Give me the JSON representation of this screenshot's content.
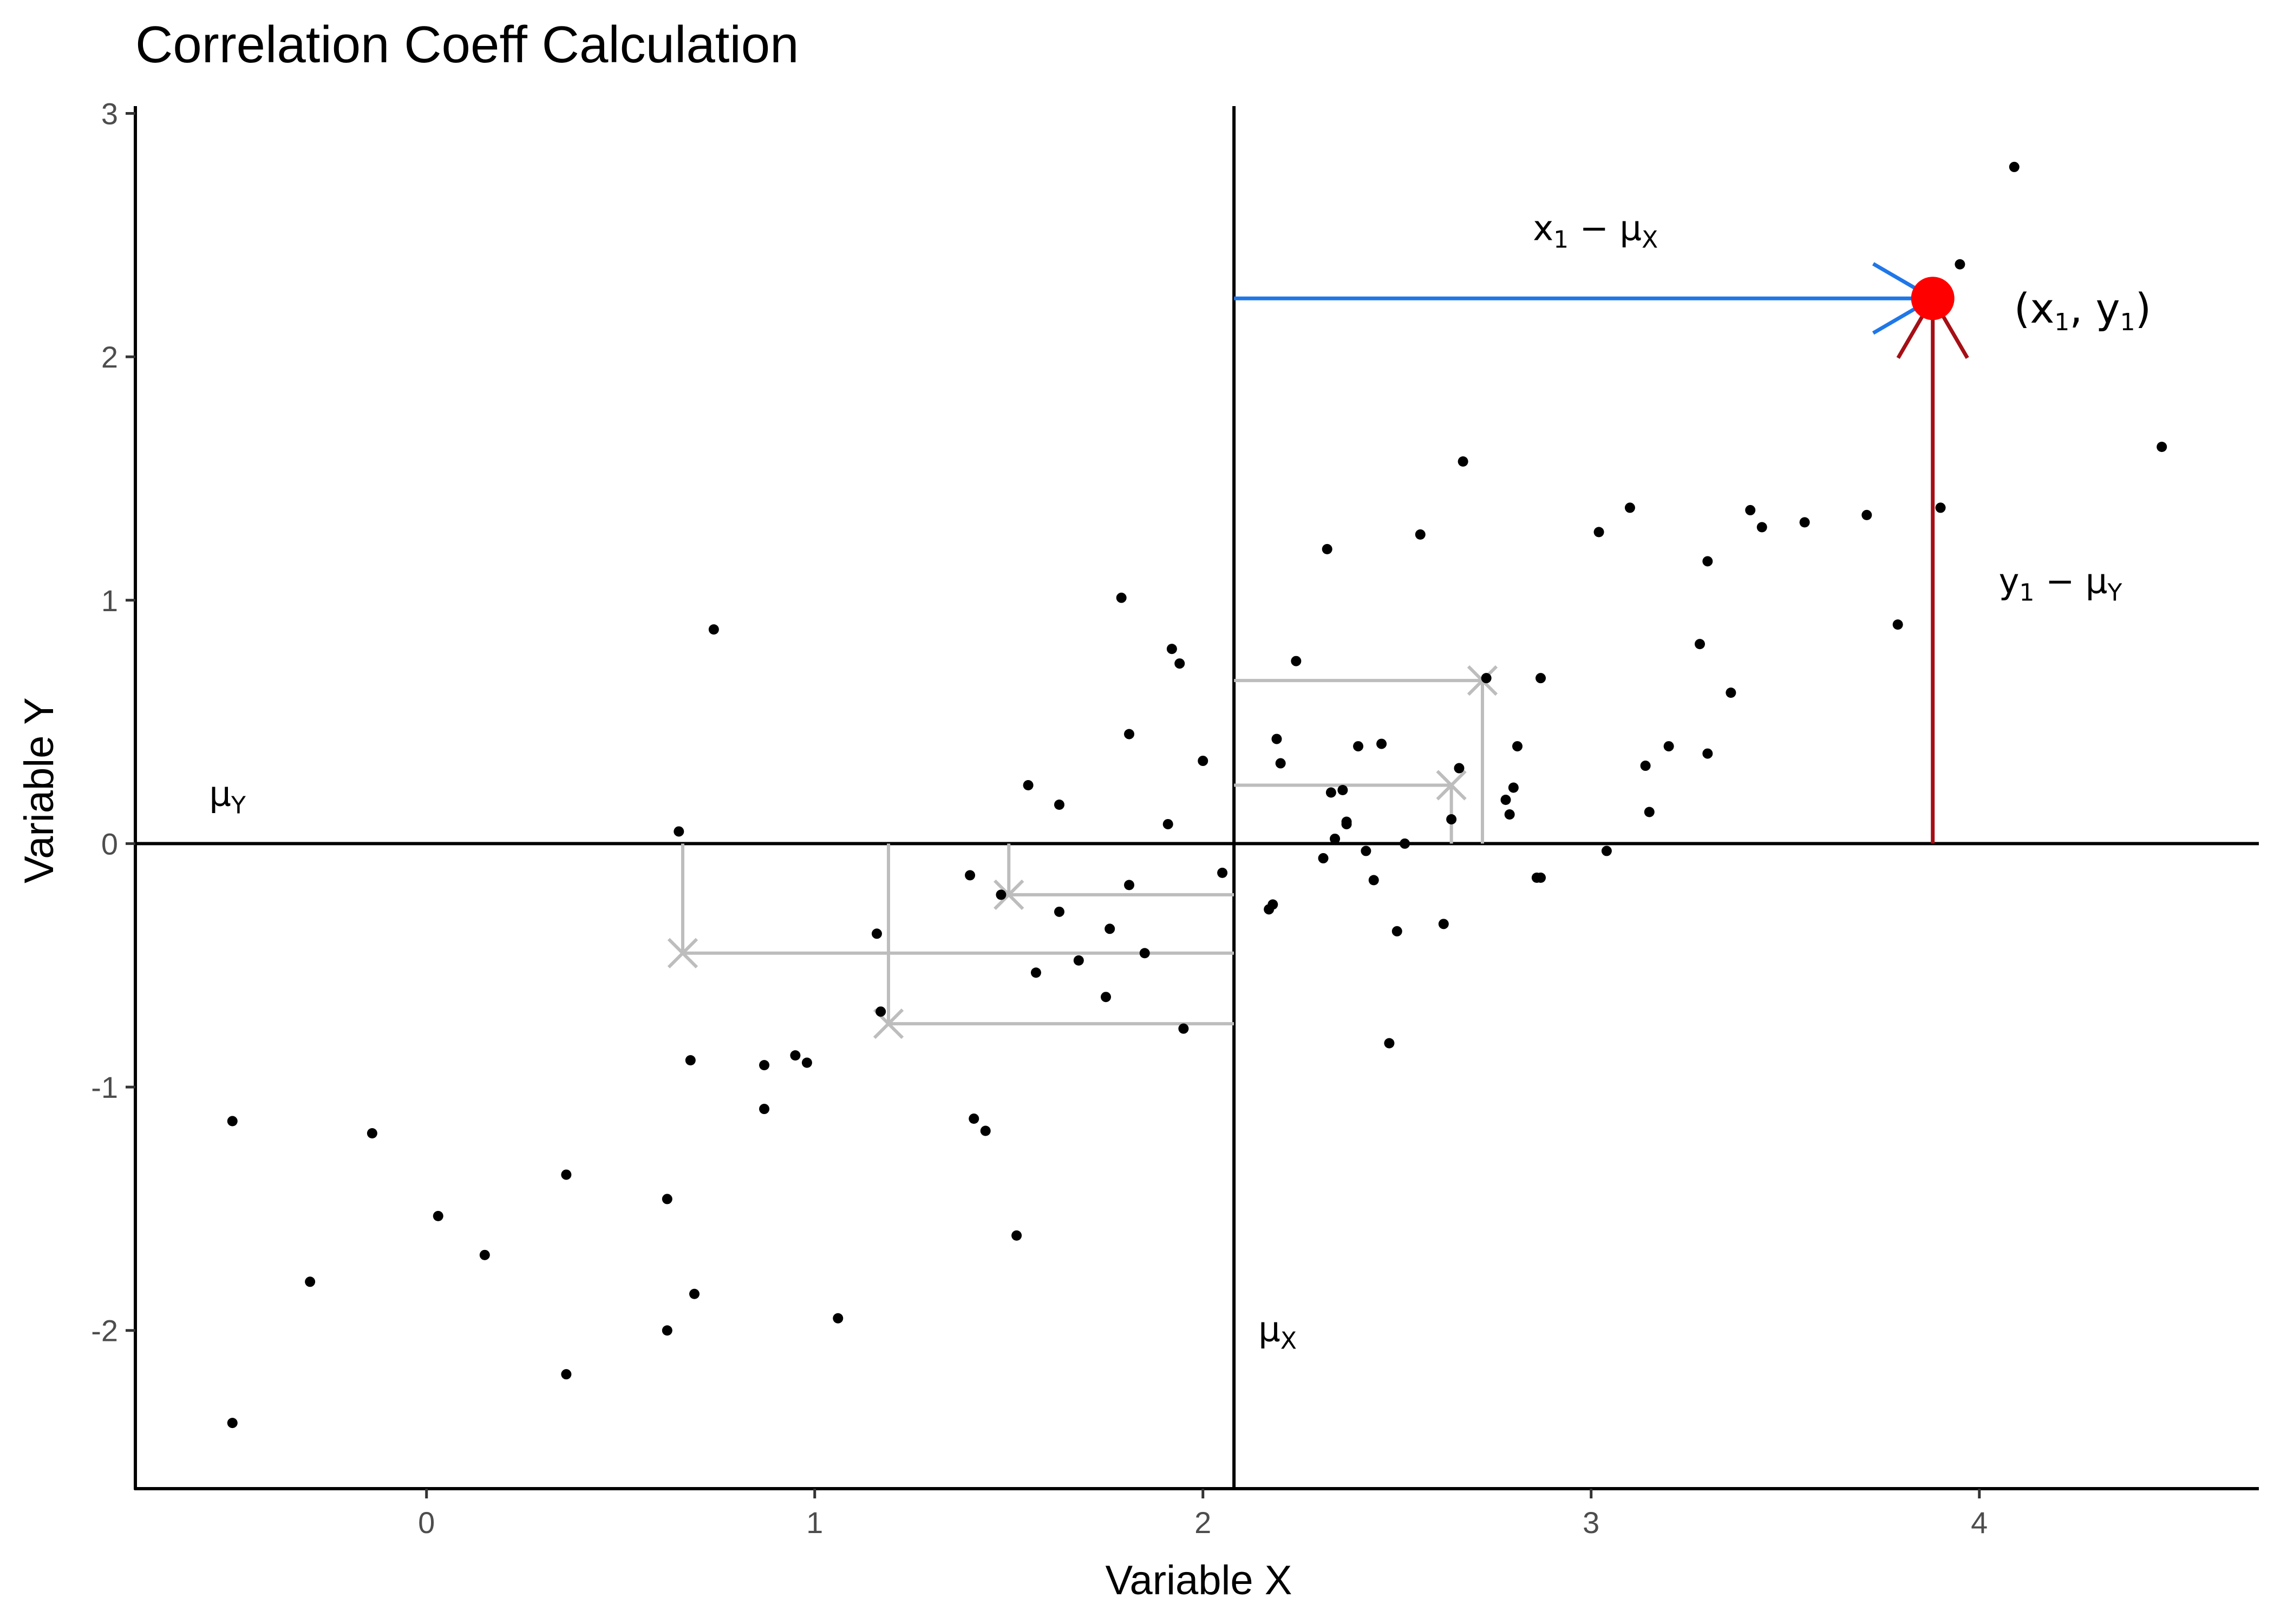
{
  "chart_data": {
    "type": "scatter",
    "title": "Correlation Coeff Calculation",
    "xlabel": "Variable X",
    "ylabel": "Variable Y",
    "xlim": [
      -0.75,
      4.72
    ],
    "ylim": [
      -2.65,
      3.03
    ],
    "x_ticks": [
      0,
      1,
      2,
      3,
      4
    ],
    "y_ticks": [
      -2,
      -1,
      0,
      1,
      2,
      3
    ],
    "grid": false,
    "mean_x": 2.08,
    "mean_y": 0,
    "points": [
      [
        -0.5,
        -2.38
      ],
      [
        -0.5,
        -1.14
      ],
      [
        -0.3,
        -1.8
      ],
      [
        -0.14,
        -1.19
      ],
      [
        0.03,
        -1.53
      ],
      [
        0.15,
        -1.69
      ],
      [
        0.36,
        -1.36
      ],
      [
        0.36,
        -2.18
      ],
      [
        0.62,
        -1.46
      ],
      [
        0.62,
        -2.0
      ],
      [
        0.65,
        0.05
      ],
      [
        0.68,
        -0.89
      ],
      [
        0.69,
        -1.85
      ],
      [
        0.74,
        0.88
      ],
      [
        0.87,
        -0.91
      ],
      [
        0.87,
        -1.09
      ],
      [
        0.95,
        -0.87
      ],
      [
        0.98,
        -0.9
      ],
      [
        1.06,
        -1.95
      ],
      [
        1.16,
        -0.37
      ],
      [
        1.17,
        -0.69
      ],
      [
        1.4,
        -0.13
      ],
      [
        1.41,
        -1.13
      ],
      [
        1.44,
        -1.18
      ],
      [
        1.48,
        -0.21
      ],
      [
        1.52,
        -1.61
      ],
      [
        1.55,
        0.24
      ],
      [
        1.57,
        -0.53
      ],
      [
        1.63,
        0.16
      ],
      [
        1.63,
        -0.28
      ],
      [
        1.68,
        -0.48
      ],
      [
        1.75,
        -0.63
      ],
      [
        1.76,
        -0.35
      ],
      [
        1.79,
        1.01
      ],
      [
        1.81,
        0.45
      ],
      [
        1.81,
        -0.17
      ],
      [
        1.85,
        -0.45
      ],
      [
        1.91,
        0.08
      ],
      [
        1.92,
        0.8
      ],
      [
        1.94,
        0.74
      ],
      [
        1.95,
        -0.76
      ],
      [
        2.0,
        0.34
      ],
      [
        2.05,
        -0.12
      ],
      [
        2.17,
        -0.27
      ],
      [
        2.18,
        -0.25
      ],
      [
        2.19,
        0.43
      ],
      [
        2.2,
        0.33
      ],
      [
        2.24,
        0.75
      ],
      [
        2.31,
        -0.06
      ],
      [
        2.32,
        1.21
      ],
      [
        2.33,
        0.21
      ],
      [
        2.34,
        0.02
      ],
      [
        2.36,
        0.22
      ],
      [
        2.37,
        0.09
      ],
      [
        2.37,
        0.08
      ],
      [
        2.4,
        0.4
      ],
      [
        2.42,
        -0.03
      ],
      [
        2.44,
        -0.15
      ],
      [
        2.46,
        0.41
      ],
      [
        2.48,
        -0.82
      ],
      [
        2.5,
        -0.36
      ],
      [
        2.52,
        0.0
      ],
      [
        2.56,
        1.27
      ],
      [
        2.62,
        -0.33
      ],
      [
        2.64,
        0.1
      ],
      [
        2.66,
        0.31
      ],
      [
        2.67,
        1.57
      ],
      [
        2.73,
        0.68
      ],
      [
        2.78,
        0.18
      ],
      [
        2.79,
        0.12
      ],
      [
        2.8,
        0.23
      ],
      [
        2.81,
        0.4
      ],
      [
        2.86,
        -0.14
      ],
      [
        2.87,
        -0.14
      ],
      [
        2.87,
        0.68
      ],
      [
        3.02,
        1.28
      ],
      [
        3.04,
        -0.03
      ],
      [
        3.1,
        1.38
      ],
      [
        3.14,
        0.32
      ],
      [
        3.15,
        0.13
      ],
      [
        3.2,
        0.4
      ],
      [
        3.28,
        0.82
      ],
      [
        3.3,
        1.16
      ],
      [
        3.3,
        0.37
      ],
      [
        3.36,
        0.62
      ],
      [
        3.41,
        1.37
      ],
      [
        3.44,
        1.3
      ],
      [
        3.55,
        1.32
      ],
      [
        3.71,
        1.35
      ],
      [
        3.79,
        0.9
      ],
      [
        3.9,
        1.38
      ],
      [
        3.95,
        2.38
      ],
      [
        4.09,
        2.78
      ],
      [
        4.47,
        1.63
      ]
    ],
    "highlight_point": {
      "x": 3.88,
      "y": 2.24,
      "label_parts": [
        "(x",
        "1",
        ", y",
        "1",
        ")"
      ]
    },
    "deviation_examples": [
      [
        0.66,
        -0.45
      ],
      [
        1.19,
        -0.74
      ],
      [
        1.5,
        -0.21
      ],
      [
        2.64,
        0.24
      ],
      [
        2.72,
        0.67
      ]
    ],
    "annotations": {
      "mu_y": {
        "main": "μ",
        "sub": "Y"
      },
      "mu_x": {
        "main": "μ",
        "sub": "X"
      },
      "x_dev": {
        "parts": [
          "x",
          "1",
          " − μ",
          "X"
        ]
      },
      "y_dev": {
        "parts": [
          "y",
          "1",
          " − μ",
          "Y"
        ]
      }
    },
    "colors": {
      "points": "#000000",
      "highlight": "#ff0000",
      "x_arrow": "#1f77e8",
      "y_arrow": "#a50f15",
      "examples": "#bdbdbd",
      "axes": "#000000"
    }
  }
}
